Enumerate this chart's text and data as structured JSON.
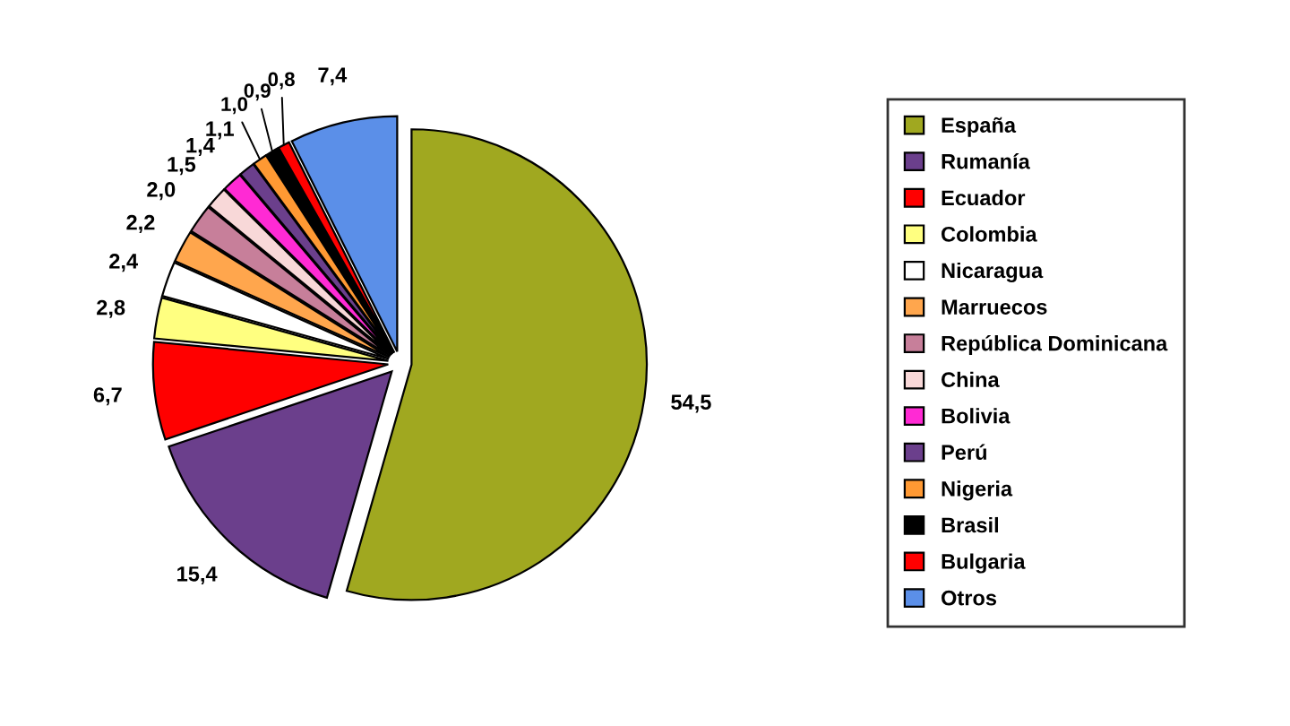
{
  "chart_data": {
    "type": "pie",
    "categories": [
      "España",
      "Rumanía",
      "Ecuador",
      "Colombia",
      "Nicaragua",
      "Marruecos",
      "República Dominicana",
      "China",
      "Bolivia",
      "Perú",
      "Nigeria",
      "Brasil",
      "Bulgaria",
      "Otros"
    ],
    "values": [
      54.5,
      15.4,
      6.7,
      2.8,
      2.4,
      2.2,
      2.0,
      1.5,
      1.4,
      1.1,
      1.0,
      0.9,
      0.8,
      7.4
    ],
    "colors": [
      "#a0a820",
      "#6b3f8c",
      "#ff0000",
      "#ffff80",
      "#ffffff",
      "#ffa64d",
      "#c77f9a",
      "#f8d8d8",
      "#ff2ad4",
      "#6b3f8c",
      "#ff9933",
      "#000000",
      "#ff0000",
      "#5b8fe8"
    ],
    "value_labels": [
      "54,5",
      "15,4",
      "6,7",
      "2,8",
      "2,4",
      "2,2",
      "2,0",
      "1,5",
      "1,4",
      "1,1",
      "1,0",
      "0,9",
      "0,8",
      "7,4"
    ],
    "legend": "right"
  }
}
